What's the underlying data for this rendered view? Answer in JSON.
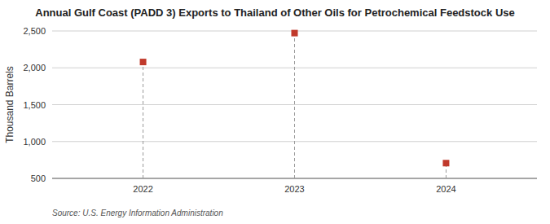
{
  "chart_data": {
    "type": "lollipop",
    "title": "Annual Gulf Coast (PADD 3) Exports to Thailand of Other Oils for Petrochemical Feedstock Use",
    "y_label": "Thousand Barrels",
    "source": "Source: U.S. Energy Information Administration",
    "x": [
      2022,
      2023,
      2024
    ],
    "values": [
      2079,
      2471,
      707
    ],
    "color": "#c0392b",
    "marker": "square",
    "line_style": "dashed",
    "xlim": [
      2021.4,
      2024.6
    ],
    "xticks": [
      2022,
      2023,
      2024
    ],
    "ylim": [
      500,
      2500
    ],
    "yticks": [
      500,
      {
        "value": 1000,
        "label": "1,000"
      },
      {
        "value": 1500,
        "label": "1,500"
      },
      {
        "value": 2000,
        "label": "2,000"
      },
      {
        "value": 2500,
        "label": "2,500"
      }
    ],
    "grid": true
  }
}
